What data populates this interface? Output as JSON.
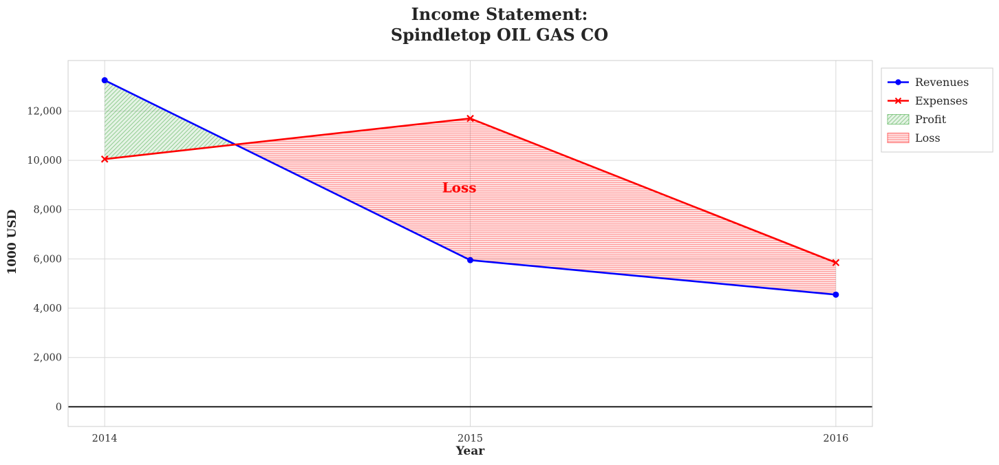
{
  "chart_data": {
    "type": "line",
    "title": "Income Statement: Spindletop OIL GAS CO",
    "title_lines": [
      "Income Statement:",
      "Spindletop OIL GAS CO"
    ],
    "xlabel": "Year",
    "ylabel": "1000 USD",
    "x": [
      2014,
      2015,
      2016
    ],
    "series": [
      {
        "name": "Revenues",
        "values": [
          13250,
          5950,
          4550
        ],
        "color": "#0000ff",
        "marker": "circle"
      },
      {
        "name": "Expenses",
        "values": [
          10050,
          11700,
          5850
        ],
        "color": "#ff0000",
        "marker": "x"
      }
    ],
    "fills": [
      {
        "name": "Profit",
        "condition": "revenues > expenses",
        "color": "#2ca02c",
        "hatch": "diagonal"
      },
      {
        "name": "Loss",
        "condition": "expenses > revenues",
        "color": "#ff0000",
        "hatch": "horizontal"
      }
    ],
    "annotations": [
      {
        "text": "Loss",
        "x": 2014.97,
        "y": 8900,
        "color": "#ff0000"
      }
    ],
    "xticks": [
      2014,
      2015,
      2016
    ],
    "yticks": [
      0,
      2000,
      4000,
      6000,
      8000,
      10000,
      12000
    ],
    "xlim": [
      2013.9,
      2016.1
    ],
    "ylim": [
      -800,
      14050
    ],
    "grid": true,
    "zero_line": true,
    "legend_position": "upper right outside",
    "legend_items": [
      "Revenues",
      "Expenses",
      "Profit",
      "Loss"
    ]
  },
  "colors": {
    "grid": "#d9d9d9",
    "plot_border": "#cccccc",
    "axis_text": "#333333",
    "title_text": "#262626",
    "zero_line": "#000000"
  }
}
